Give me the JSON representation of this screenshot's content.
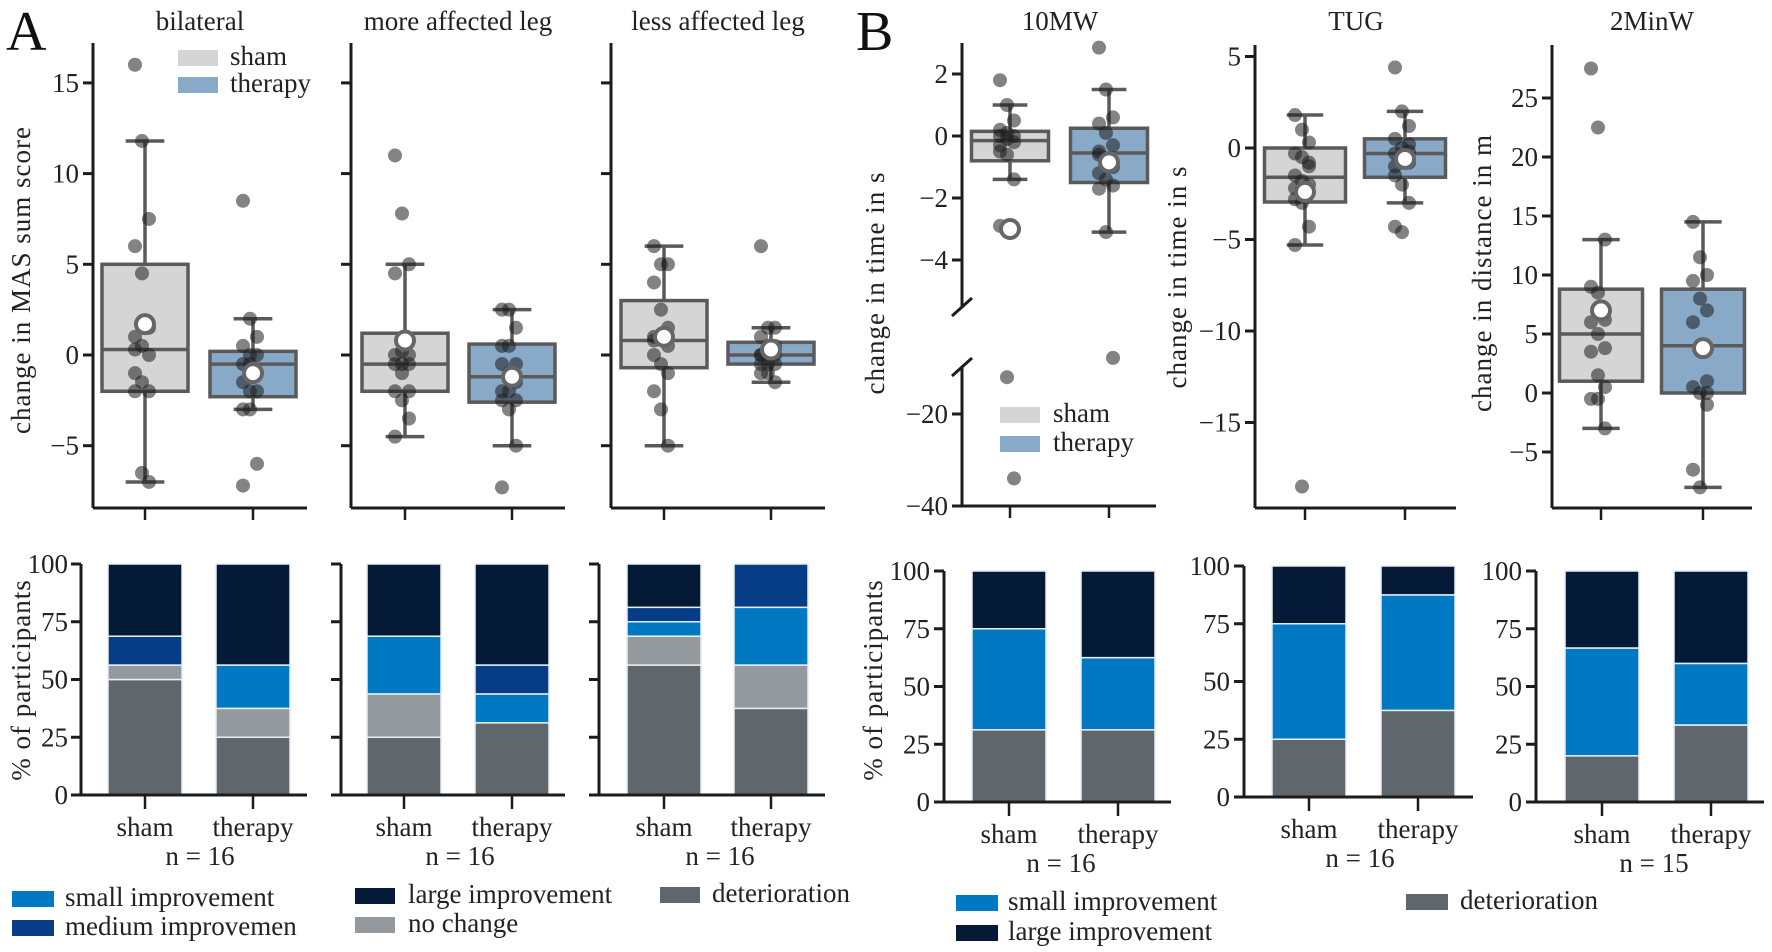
{
  "panels": {
    "A": "A",
    "B": "B"
  },
  "colors": {
    "sham": "#d5d5d5",
    "therapy": "#88a9c7",
    "box_edge": "#5a5a5a",
    "deterioration": "#5f676d",
    "no change": "#93999d",
    "small improvement": "#0079c3",
    "medium improvement": "#063d86",
    "large improvement": "#041a37"
  },
  "box_legend": [
    {
      "label": "sham",
      "key": "sham"
    },
    {
      "label": "therapy",
      "key": "therapy"
    }
  ],
  "legend_A": [
    {
      "label": "small improvement",
      "key": "small improvement"
    },
    {
      "label": "medium improvemen",
      "key": "medium improvement"
    },
    {
      "label": "large improvement",
      "key": "large improvement"
    },
    {
      "label": "no change",
      "key": "no change"
    },
    {
      "label": "deterioration",
      "key": "deterioration"
    }
  ],
  "legend_B": [
    {
      "label": "small improvement",
      "key": "small improvement"
    },
    {
      "label": "large improvement",
      "key": "large improvement"
    },
    {
      "label": "deterioration",
      "key": "deterioration"
    }
  ],
  "chart_data": [
    {
      "panel": "A",
      "type": "box",
      "title": "bilateral",
      "ylabel": "change in MAS sum score",
      "yticks": [
        -5,
        0,
        5,
        10,
        15
      ],
      "yticklabels": [
        "−5",
        "0",
        "5",
        "10",
        "15"
      ],
      "categories": [
        "sham",
        "therapy"
      ],
      "series": [
        {
          "name": "sham",
          "whisker_low": -7,
          "q1": -2,
          "median": 0.3,
          "q3": 5,
          "whisker_high": 11.8,
          "mean": 1.7,
          "points": [
            16,
            11.8,
            7.5,
            6,
            4.5,
            1.5,
            1,
            0.5,
            0,
            -1,
            -1.5,
            -2,
            -2,
            -6.5,
            -7,
            0.3
          ]
        },
        {
          "name": "therapy",
          "whisker_low": -3,
          "q1": -2.3,
          "median": -0.5,
          "q3": 0.2,
          "whisker_high": 2,
          "mean": -1,
          "points": [
            8.5,
            2,
            1,
            0.5,
            0,
            0,
            -0.5,
            -0.5,
            -1,
            -1.5,
            -2,
            -2,
            -3,
            -3,
            -6,
            -7.2
          ]
        }
      ]
    },
    {
      "panel": "A",
      "type": "box",
      "title": "more affected leg",
      "yticks": [
        -5,
        0,
        5,
        10,
        15
      ],
      "categories": [
        "sham",
        "therapy"
      ],
      "series": [
        {
          "name": "sham",
          "whisker_low": -4.5,
          "q1": -2,
          "median": -0.5,
          "q3": 1.2,
          "whisker_high": 5,
          "mean": 0.8,
          "points": [
            11,
            7.8,
            5,
            4.5,
            0.2,
            0,
            0,
            -0.5,
            -0.5,
            -0.5,
            -1,
            -2,
            -2,
            -2.5,
            -3.5,
            -4.5
          ]
        },
        {
          "name": "therapy",
          "whisker_low": -5,
          "q1": -2.6,
          "median": -1.2,
          "q3": 0.6,
          "whisker_high": 2.5,
          "mean": -1.2,
          "points": [
            2.5,
            2.5,
            1.5,
            0.5,
            0.5,
            -0.5,
            -0.5,
            -1,
            -1.5,
            -2,
            -2,
            -2.5,
            -2.5,
            -3,
            -5,
            -7.3
          ]
        }
      ]
    },
    {
      "panel": "A",
      "type": "box",
      "title": "less affected leg",
      "yticks": [
        -5,
        0,
        5,
        10,
        15
      ],
      "categories": [
        "sham",
        "therapy"
      ],
      "series": [
        {
          "name": "sham",
          "whisker_low": -5,
          "q1": -0.7,
          "median": 0.8,
          "q3": 3,
          "whisker_high": 6,
          "mean": 1,
          "points": [
            6,
            5,
            5,
            4,
            2.5,
            1.5,
            1,
            1,
            0.5,
            0,
            -0.5,
            -1,
            -2,
            -3,
            -5,
            0.8
          ]
        },
        {
          "name": "therapy",
          "whisker_low": -1.5,
          "q1": -0.5,
          "median": 0,
          "q3": 0.7,
          "whisker_high": 1.5,
          "mean": 0.3,
          "points": [
            6,
            1.5,
            1.5,
            1,
            0.5,
            0.5,
            0,
            0,
            0,
            -0.5,
            -0.5,
            -0.5,
            -1,
            -1,
            -1.5,
            0
          ]
        }
      ]
    },
    {
      "panel": "B",
      "type": "box",
      "title": "10MW",
      "ylabel": "change in  time in s",
      "ybreak": true,
      "yticks": [
        -40,
        -20,
        -4,
        -2,
        0,
        2
      ],
      "yticklabels": [
        "−40",
        "−20",
        "−4",
        "−2",
        "0",
        "2"
      ],
      "categories": [
        "sham",
        "therapy"
      ],
      "series": [
        {
          "name": "sham",
          "whisker_low": -1.4,
          "q1": -0.8,
          "median": -0.15,
          "q3": 0.15,
          "whisker_high": 1,
          "mean": -3,
          "points": [
            1.8,
            1,
            0.5,
            0.2,
            0.1,
            0,
            0,
            -0.1,
            -0.2,
            -0.5,
            -0.6,
            -1.4,
            -2.9,
            -12,
            -34,
            -0.3
          ]
        },
        {
          "name": "therapy",
          "whisker_low": -3.1,
          "q1": -1.5,
          "median": -0.55,
          "q3": 0.25,
          "whisker_high": 1.5,
          "mean": -0.85,
          "points": [
            2.85,
            1.5,
            0.6,
            0.4,
            0.1,
            -0.3,
            -0.5,
            -0.8,
            -1,
            -1.2,
            -1.4,
            -1.6,
            -1.7,
            -3.1,
            -7.8,
            -0.6
          ]
        }
      ]
    },
    {
      "panel": "B",
      "type": "box",
      "title": "TUG",
      "ylabel": "change in time in s",
      "yticks": [
        -15,
        -10,
        -5,
        0,
        5
      ],
      "yticklabels": [
        "−15",
        "−10",
        "−5",
        "0",
        "5"
      ],
      "categories": [
        "sham",
        "therapy"
      ],
      "series": [
        {
          "name": "sham",
          "whisker_low": -5.3,
          "q1": -2.95,
          "median": -1.6,
          "q3": 0,
          "whisker_high": 1.8,
          "mean": -2.4,
          "points": [
            1.8,
            1,
            0.3,
            -0.3,
            -0.5,
            -1,
            -1.5,
            -1.8,
            -2,
            -2.8,
            -3,
            -4.3,
            -5.3,
            -18.5,
            -0.8,
            -2.2
          ]
        },
        {
          "name": "therapy",
          "whisker_low": -3,
          "q1": -1.6,
          "median": -0.3,
          "q3": 0.5,
          "whisker_high": 2,
          "mean": -0.6,
          "points": [
            4.4,
            2,
            1.2,
            0.5,
            0,
            -0.2,
            -0.3,
            -0.5,
            -0.8,
            -1.5,
            -2,
            -3,
            -4.3,
            -4.6,
            0.2,
            -1
          ]
        }
      ]
    },
    {
      "panel": "B",
      "type": "box",
      "title": "2MinW",
      "ylabel": "change in  distance in m",
      "yticks": [
        -5,
        0,
        5,
        10,
        15,
        20,
        25
      ],
      "yticklabels": [
        "−5",
        "0",
        "5",
        "10",
        "15",
        "20",
        "25"
      ],
      "categories": [
        "sham",
        "therapy"
      ],
      "series": [
        {
          "name": "sham",
          "whisker_low": -3,
          "q1": 1,
          "median": 5,
          "q3": 8.8,
          "whisker_high": 13,
          "mean": 7,
          "points": [
            27.5,
            22.5,
            13,
            9,
            8.5,
            6.2,
            6,
            5,
            3.8,
            3.5,
            1.5,
            0.5,
            -0.5,
            -0.5,
            -3
          ]
        },
        {
          "name": "therapy",
          "whisker_low": -8,
          "q1": 0,
          "median": 4,
          "q3": 8.8,
          "whisker_high": 14.5,
          "mean": 3.8,
          "points": [
            14.5,
            11.5,
            10,
            9.5,
            8,
            7,
            6,
            4,
            1,
            0.5,
            0,
            -1,
            -6.5,
            -8,
            0
          ]
        }
      ]
    },
    {
      "panel": "A",
      "type": "bar",
      "stacked": true,
      "ylabel": "% of participants",
      "ylim": [
        0,
        100
      ],
      "yticks": [
        0,
        25,
        50,
        75,
        100
      ],
      "yticklabels": [
        "0",
        "25",
        "50",
        "75",
        "100"
      ],
      "categories": [
        "sham",
        "therapy"
      ],
      "n_label": "n = 16",
      "stacks": [
        [
          {
            "category": "deterioration",
            "value": 50
          },
          {
            "category": "no change",
            "value": 6.25
          },
          {
            "category": "medium improvement",
            "value": 12.5
          },
          {
            "category": "large improvement",
            "value": 31.25
          }
        ],
        [
          {
            "category": "deterioration",
            "value": 25
          },
          {
            "category": "no change",
            "value": 12.5
          },
          {
            "category": "small improvement",
            "value": 18.75
          },
          {
            "category": "large improvement",
            "value": 43.75
          }
        ]
      ]
    },
    {
      "panel": "A",
      "type": "bar",
      "stacked": true,
      "ylim": [
        0,
        100
      ],
      "yticks": [
        0,
        25,
        50,
        75,
        100
      ],
      "categories": [
        "sham",
        "therapy"
      ],
      "n_label": "n = 16",
      "stacks": [
        [
          {
            "category": "deterioration",
            "value": 25
          },
          {
            "category": "no change",
            "value": 18.75
          },
          {
            "category": "small improvement",
            "value": 25
          },
          {
            "category": "large improvement",
            "value": 31.25
          }
        ],
        [
          {
            "category": "deterioration",
            "value": 31.25
          },
          {
            "category": "small improvement",
            "value": 12.5
          },
          {
            "category": "medium improvement",
            "value": 12.5
          },
          {
            "category": "large improvement",
            "value": 43.75
          }
        ]
      ]
    },
    {
      "panel": "A",
      "type": "bar",
      "stacked": true,
      "ylim": [
        0,
        100
      ],
      "yticks": [
        0,
        25,
        50,
        75,
        100
      ],
      "categories": [
        "sham",
        "therapy"
      ],
      "n_label": "n = 16",
      "stacks": [
        [
          {
            "category": "deterioration",
            "value": 56.25
          },
          {
            "category": "no change",
            "value": 12.5
          },
          {
            "category": "small improvement",
            "value": 6.25
          },
          {
            "category": "medium improvement",
            "value": 6.25
          },
          {
            "category": "large improvement",
            "value": 18.75
          }
        ],
        [
          {
            "category": "deterioration",
            "value": 37.5
          },
          {
            "category": "no change",
            "value": 18.75
          },
          {
            "category": "small improvement",
            "value": 25
          },
          {
            "category": "medium improvement",
            "value": 18.75
          }
        ]
      ]
    },
    {
      "panel": "B",
      "type": "bar",
      "stacked": true,
      "ylabel": "% of participants",
      "ylim": [
        0,
        100
      ],
      "yticks": [
        0,
        25,
        50,
        75,
        100
      ],
      "yticklabels": [
        "0",
        "25",
        "50",
        "75",
        "100"
      ],
      "categories": [
        "sham",
        "therapy"
      ],
      "n_label": "n = 16",
      "stacks": [
        [
          {
            "category": "deterioration",
            "value": 31.25
          },
          {
            "category": "small improvement",
            "value": 43.75
          },
          {
            "category": "large improvement",
            "value": 25
          }
        ],
        [
          {
            "category": "deterioration",
            "value": 31.25
          },
          {
            "category": "small improvement",
            "value": 31.25
          },
          {
            "category": "large improvement",
            "value": 37.5
          }
        ]
      ]
    },
    {
      "panel": "B",
      "type": "bar",
      "stacked": true,
      "ylim": [
        0,
        100
      ],
      "yticks": [
        0,
        25,
        50,
        75,
        100
      ],
      "yticklabels": [
        "0",
        "25",
        "50",
        "75",
        "100"
      ],
      "categories": [
        "sham",
        "therapy"
      ],
      "n_label": "n = 16",
      "stacks": [
        [
          {
            "category": "deterioration",
            "value": 25
          },
          {
            "category": "small improvement",
            "value": 50
          },
          {
            "category": "large improvement",
            "value": 25
          }
        ],
        [
          {
            "category": "deterioration",
            "value": 37.5
          },
          {
            "category": "small improvement",
            "value": 50
          },
          {
            "category": "large improvement",
            "value": 12.5
          }
        ]
      ]
    },
    {
      "panel": "B",
      "type": "bar",
      "stacked": true,
      "ylim": [
        0,
        100
      ],
      "yticks": [
        0,
        25,
        50,
        75,
        100
      ],
      "yticklabels": [
        "0",
        "25",
        "50",
        "75",
        "100"
      ],
      "categories": [
        "sham",
        "therapy"
      ],
      "n_label": "n = 15",
      "stacks": [
        [
          {
            "category": "deterioration",
            "value": 20
          },
          {
            "category": "small improvement",
            "value": 46.67
          },
          {
            "category": "large improvement",
            "value": 33.33
          }
        ],
        [
          {
            "category": "deterioration",
            "value": 33.33
          },
          {
            "category": "small improvement",
            "value": 26.67
          },
          {
            "category": "large improvement",
            "value": 40
          }
        ]
      ]
    }
  ]
}
